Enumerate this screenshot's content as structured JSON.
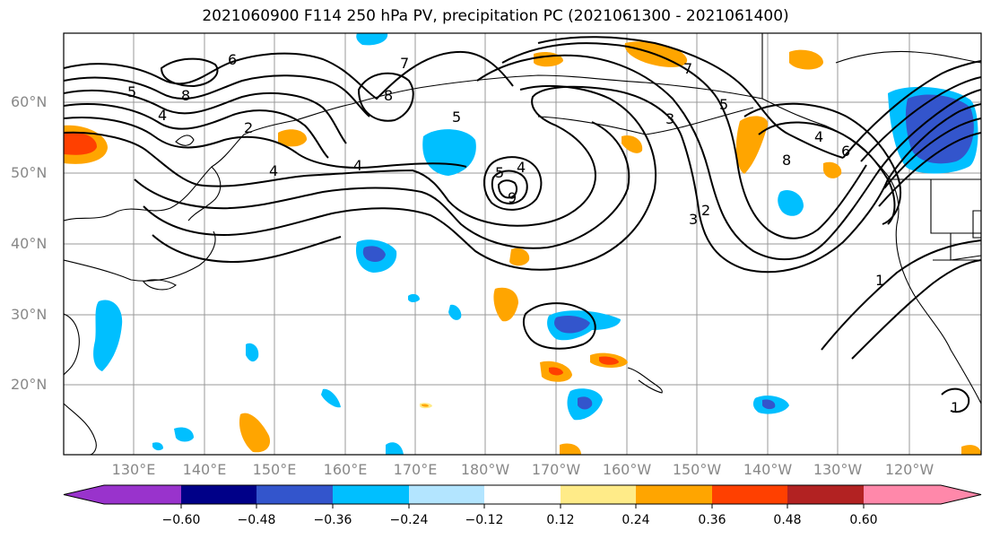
{
  "title": "2021060900 F114 250 hPa PV, precipitation PC (2021061300 - 2021061400)",
  "lat_labels": [
    "60°N",
    "50°N",
    "40°N",
    "30°N",
    "20°N"
  ],
  "lon_labels": [
    "130°E",
    "140°E",
    "150°E",
    "160°E",
    "170°E",
    "180°W",
    "170°W",
    "160°W",
    "150°W",
    "140°W",
    "130°W",
    "120°W"
  ],
  "colorbar": {
    "ticks": [
      "−0.60",
      "−0.48",
      "−0.36",
      "−0.24",
      "−0.12",
      "0.12",
      "0.24",
      "0.36",
      "0.48",
      "0.60"
    ],
    "colors": [
      "#9933cc",
      "#000088",
      "#3355cc",
      "#00bfff",
      "#b3e5ff",
      "#ffffff",
      "#ffeb88",
      "#ffa500",
      "#ff4000",
      "#b22222",
      "#ff88aa"
    ]
  },
  "contour_labels": [
    "5",
    "4",
    "6",
    "8",
    "7",
    "8",
    "5",
    "2",
    "4",
    "4",
    "5",
    "4",
    "9",
    "7",
    "3",
    "5",
    "8",
    "4",
    "6",
    "2",
    "3",
    "1",
    "1"
  ],
  "precip_colors": {
    "orange": "#ffa500",
    "light_blue": "#00bfff",
    "blue": "#3355cc",
    "red": "#ff4000",
    "yellow": "#ffeb88"
  }
}
